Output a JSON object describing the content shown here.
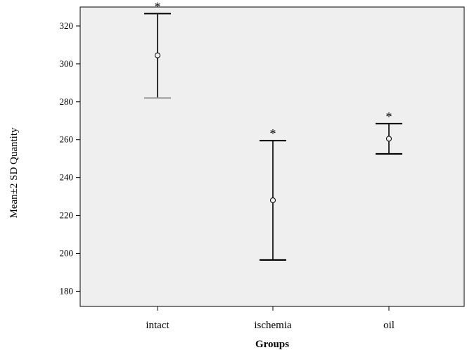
{
  "chart_data": {
    "type": "errorbar",
    "xlabel": "Groups",
    "ylabel": "Mean±2 SD Quantity",
    "ylim": [
      172,
      330
    ],
    "yticks": [
      180,
      200,
      220,
      240,
      260,
      280,
      300,
      320
    ],
    "categories": [
      "intact",
      "ischemia",
      "oil"
    ],
    "series": [
      {
        "values": [
          304.5,
          228,
          260.5
        ],
        "lower": [
          282,
          196.5,
          252.5
        ],
        "upper": [
          326.5,
          259.5,
          268.5
        ],
        "annotations": [
          "*",
          "*",
          "*"
        ]
      }
    ],
    "grid": false,
    "background": "#efefef",
    "color": "#000000"
  }
}
